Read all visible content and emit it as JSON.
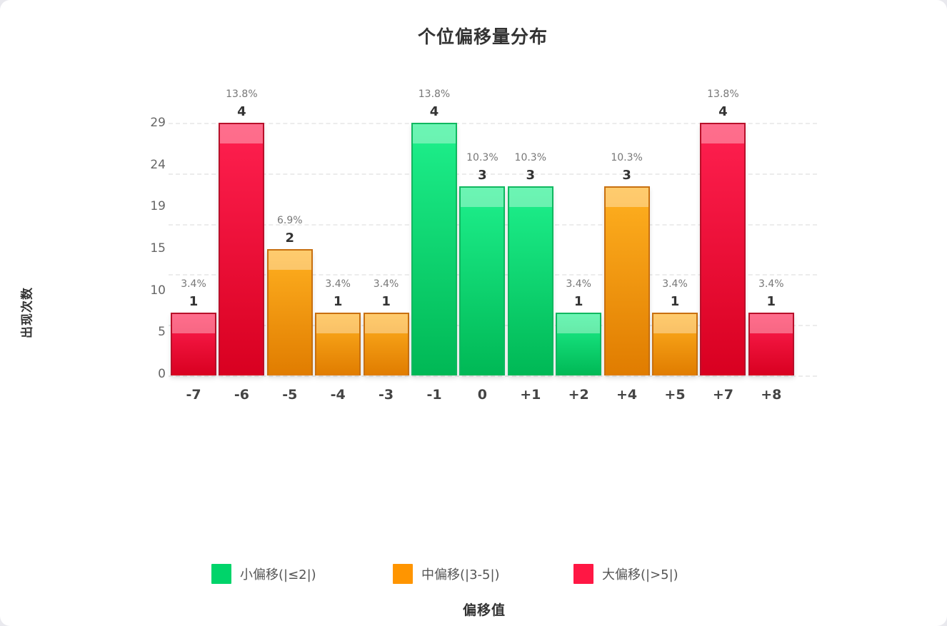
{
  "chart_data": {
    "type": "bar",
    "title": "个位偏移量分布",
    "xlabel": "偏移值",
    "ylabel": "出现次数",
    "categories": [
      "-7",
      "-6",
      "-5",
      "-4",
      "-3",
      "-1",
      "0",
      "+1",
      "+2",
      "+4",
      "+5",
      "+7",
      "+8"
    ],
    "values": [
      1,
      4,
      2,
      1,
      1,
      4,
      3,
      3,
      1,
      3,
      1,
      4,
      1
    ],
    "percentages": [
      "3.4%",
      "13.8%",
      "6.9%",
      "3.4%",
      "3.4%",
      "13.8%",
      "10.3%",
      "10.3%",
      "3.4%",
      "10.3%",
      "3.4%",
      "13.8%",
      "3.4%"
    ],
    "groups": [
      "large",
      "large",
      "medium",
      "medium",
      "medium",
      "small",
      "small",
      "small",
      "small",
      "medium",
      "medium",
      "large",
      "large"
    ],
    "y_tick_labels": [
      "29",
      "24",
      "19",
      "15",
      "10",
      "5",
      "0"
    ],
    "ylim": [
      0,
      4
    ],
    "grid": true,
    "legend_position": "bottom",
    "legend": [
      {
        "key": "small",
        "label": "小偏移(|≤2|)",
        "color": "#00d46a"
      },
      {
        "key": "medium",
        "label": "中偏移(|3-5|)",
        "color": "#ff9500"
      },
      {
        "key": "large",
        "label": "大偏移(|>5|)",
        "color": "#ff1744"
      }
    ]
  },
  "colors": {
    "small": {
      "top": "#1ef08c",
      "bottom": "#00b855",
      "border": "#10b860"
    },
    "medium": {
      "top": "#ffb020",
      "bottom": "#e07c00",
      "border": "#c87010"
    },
    "large": {
      "top": "#ff2050",
      "bottom": "#d80020",
      "border": "#b8102a"
    }
  }
}
